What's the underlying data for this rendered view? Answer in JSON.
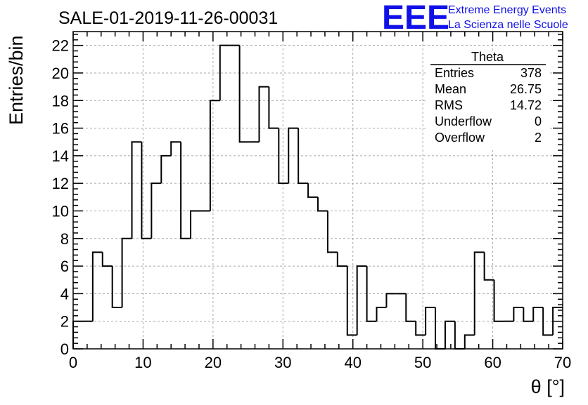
{
  "logo": {
    "letters": "EEE",
    "line1": "Extreme Energy Events",
    "line2": "La Scienza nelle Scuole",
    "color": "#1010e8"
  },
  "stats": {
    "title": "Theta",
    "rows": [
      {
        "label": "Entries",
        "value": "378"
      },
      {
        "label": "Mean",
        "value": "26.75"
      },
      {
        "label": "RMS",
        "value": "14.72"
      },
      {
        "label": "Underflow",
        "value": "0"
      },
      {
        "label": "Overflow",
        "value": "2"
      }
    ]
  },
  "chart_data": {
    "type": "histogram",
    "title": "SALE-01-2019-11-26-00031",
    "xlabel": "θ [°]",
    "ylabel": "Entries/bin",
    "xlim": [
      0,
      70
    ],
    "ylim": [
      0,
      23
    ],
    "bin_width": 1.4,
    "bin_start": 0,
    "counts": [
      2,
      2,
      7,
      6,
      3,
      8,
      15,
      8,
      12,
      14,
      15,
      8,
      10,
      10,
      18,
      22,
      22,
      15,
      15,
      19,
      16,
      12,
      16,
      12,
      11,
      10,
      7,
      6,
      1,
      6,
      2,
      3,
      4,
      4,
      2,
      1,
      3,
      0,
      2,
      0,
      1,
      7,
      5,
      2,
      2,
      3,
      2,
      3,
      1,
      3
    ],
    "xticks": [
      0,
      10,
      20,
      30,
      40,
      50,
      60,
      70
    ],
    "yticks": [
      0,
      2,
      4,
      6,
      8,
      10,
      12,
      14,
      16,
      18,
      20,
      22
    ],
    "grid": true,
    "legend": "none",
    "line_color": "#000000"
  }
}
